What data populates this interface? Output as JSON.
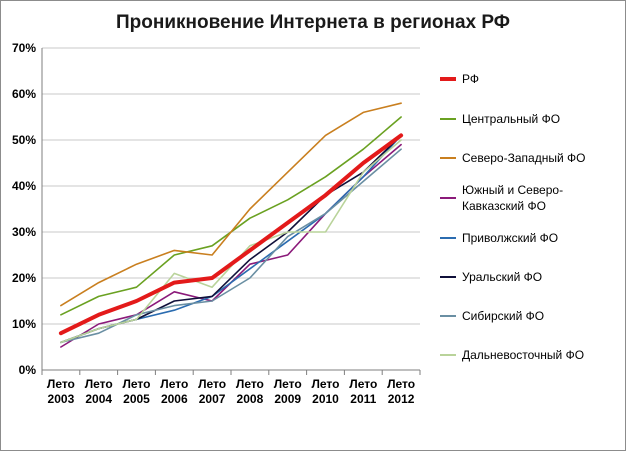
{
  "chart_data": {
    "type": "line",
    "title": "Проникновение Интернета в регионах РФ",
    "categories": [
      "Лето 2003",
      "Лето 2004",
      "Лето 2005",
      "Лето 2006",
      "Лето 2007",
      "Лето 2008",
      "Лето 2009",
      "Лето 2010",
      "Лето 2011",
      "Лето 2012"
    ],
    "y_ticks": [
      "0%",
      "10%",
      "20%",
      "30%",
      "40%",
      "50%",
      "60%",
      "70%"
    ],
    "ylim": [
      0,
      70
    ],
    "grid": true,
    "legend_position": "right",
    "series": [
      {
        "name": "РФ",
        "color": "#e31a1a",
        "width": 4,
        "values": [
          8,
          12,
          15,
          19,
          20,
          26,
          32,
          38,
          45,
          51
        ]
      },
      {
        "name": "Центральный ФО",
        "color": "#6aa121",
        "width": 1.6,
        "values": [
          12,
          16,
          18,
          25,
          27,
          33,
          37,
          42,
          48,
          55
        ]
      },
      {
        "name": "Северо-Западный ФО",
        "color": "#c97f1f",
        "width": 1.6,
        "values": [
          14,
          19,
          23,
          26,
          25,
          35,
          43,
          51,
          56,
          58
        ]
      },
      {
        "name": "Южный и Северо-Кавказский ФО",
        "color": "#8b1a7a",
        "width": 1.6,
        "values": [
          5,
          10,
          12,
          17,
          15,
          23,
          25,
          34,
          42,
          49
        ]
      },
      {
        "name": "Приволжский ФО",
        "color": "#2b6cb0",
        "width": 1.6,
        "values": [
          6,
          9,
          11,
          13,
          16,
          22,
          28,
          34,
          42,
          51
        ]
      },
      {
        "name": "Уральский ФО",
        "color": "#10103a",
        "width": 1.6,
        "values": [
          6,
          9,
          11,
          15,
          16,
          24,
          30,
          38,
          43,
          51
        ]
      },
      {
        "name": "Сибирский ФО",
        "color": "#6a8fa3",
        "width": 1.6,
        "values": [
          6,
          8,
          12,
          14,
          15,
          20,
          29,
          34,
          41,
          48
        ]
      },
      {
        "name": "Дальневосточный ФО",
        "color": "#b9d39a",
        "width": 1.6,
        "values": [
          6,
          9,
          11,
          21,
          18,
          27,
          30,
          30,
          43,
          50
        ]
      }
    ]
  }
}
